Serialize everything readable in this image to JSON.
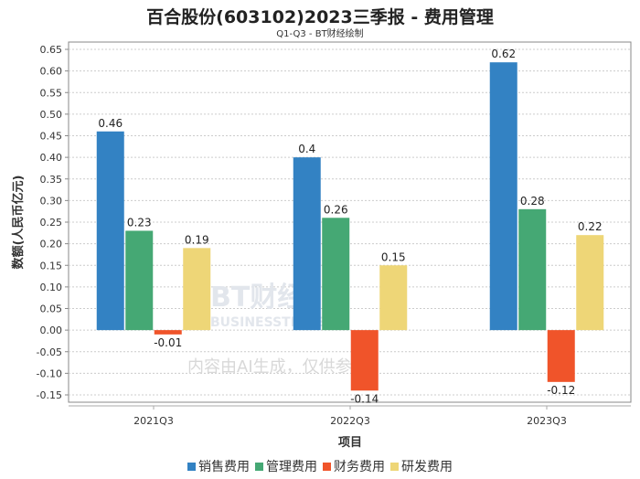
{
  "chart_data": {
    "type": "bar",
    "title": "百合股份(603102)2023三季报 - 费用管理",
    "subtitle": "Q1-Q3 - BT财经绘制",
    "xlabel": "项目",
    "ylabel": "数额(人民币亿元)",
    "categories": [
      "2021Q3",
      "2022Q3",
      "2023Q3"
    ],
    "series": [
      {
        "name": "销售费用",
        "color": "#3382c3",
        "values": [
          0.46,
          0.4,
          0.62
        ]
      },
      {
        "name": "管理费用",
        "color": "#45a874",
        "values": [
          0.23,
          0.26,
          0.28
        ]
      },
      {
        "name": "财务费用",
        "color": "#f0542a",
        "values": [
          -0.01,
          -0.14,
          -0.12
        ]
      },
      {
        "name": "研发费用",
        "color": "#eed677",
        "values": [
          0.19,
          0.15,
          0.22
        ]
      }
    ],
    "ylim": [
      -0.15,
      0.65
    ],
    "yticks": [
      "0.65",
      "0.60",
      "0.55",
      "0.50",
      "0.45",
      "0.40",
      "0.35",
      "0.30",
      "0.25",
      "0.20",
      "0.15",
      "0.10",
      "0.05",
      "0.00",
      "-0.05",
      "-0.10",
      "-0.15"
    ],
    "grid": true,
    "legend": "bottom"
  },
  "watermark": {
    "brand": "BT财经",
    "brand_en": "BUSINESSTIMES",
    "notice": "内容由AI生成，仅供参考"
  }
}
